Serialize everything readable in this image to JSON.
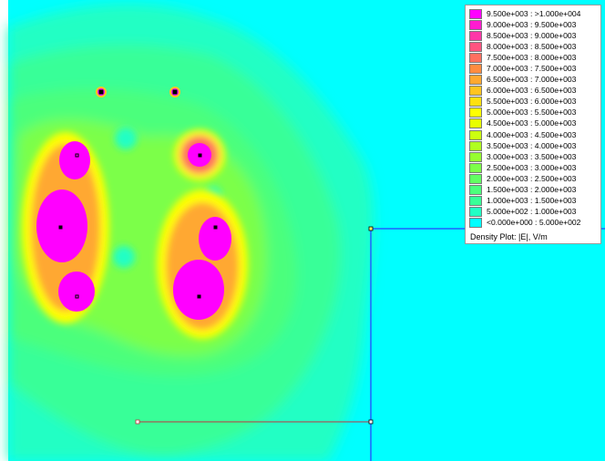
{
  "legend": {
    "entries": [
      {
        "label": "9.500e+003 : >1.000e+004",
        "color": "#ff00ff"
      },
      {
        "label": "9.000e+003 : 9.500e+003",
        "color": "#ff1cd0"
      },
      {
        "label": "8.500e+003 : 9.000e+003",
        "color": "#ff38a8"
      },
      {
        "label": "8.000e+003 : 8.500e+003",
        "color": "#ff5480"
      },
      {
        "label": "7.500e+003 : 8.000e+003",
        "color": "#ff7060"
      },
      {
        "label": "7.000e+003 : 7.500e+003",
        "color": "#ff8c40"
      },
      {
        "label": "6.500e+003 : 7.000e+003",
        "color": "#ffa830"
      },
      {
        "label": "6.000e+003 : 6.500e+003",
        "color": "#ffc420"
      },
      {
        "label": "5.500e+003 : 6.000e+003",
        "color": "#ffe010"
      },
      {
        "label": "5.000e+003 : 5.500e+003",
        "color": "#ffff00"
      },
      {
        "label": "4.500e+003 : 5.000e+003",
        "color": "#e8ff00"
      },
      {
        "label": "4.000e+003 : 4.500e+003",
        "color": "#ccff10"
      },
      {
        "label": "3.500e+003 : 4.000e+003",
        "color": "#b0ff20"
      },
      {
        "label": "3.000e+003 : 3.500e+003",
        "color": "#96ff30"
      },
      {
        "label": "2.500e+003 : 3.000e+003",
        "color": "#7cff48"
      },
      {
        "label": "2.000e+003 : 2.500e+003",
        "color": "#62ff62"
      },
      {
        "label": "1.500e+003 : 2.000e+003",
        "color": "#4cff7c"
      },
      {
        "label": "1.000e+003 : 1.500e+003",
        "color": "#38ff98"
      },
      {
        "label": "5.000e+002 : 1.000e+003",
        "color": "#22ffc4"
      },
      {
        "label": "<0.000e+000 : 5.000e+002",
        "color": "#00ffff"
      }
    ],
    "footer": "Density Plot: |E|, V/m"
  },
  "colors": {
    "background": "#00ffff",
    "boundary_line": "#2060ff",
    "bottom_line": "#c03040"
  }
}
